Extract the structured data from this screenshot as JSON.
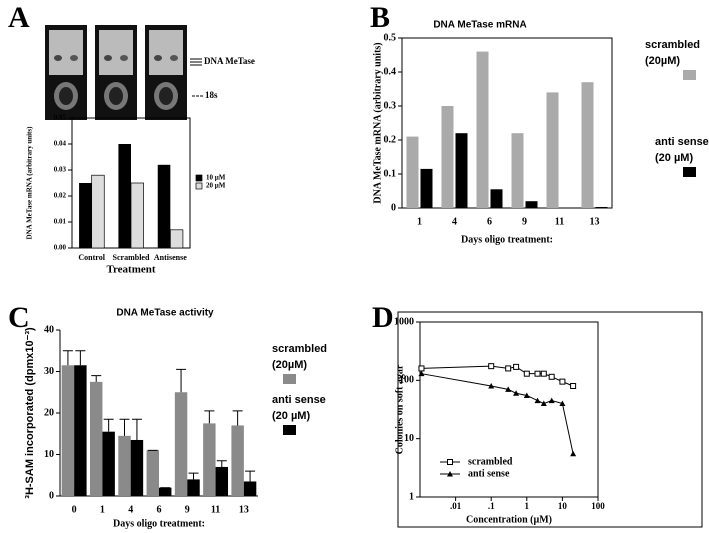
{
  "chart_data": [
    {
      "panel": "A",
      "type": "bar",
      "annotations": [
        "DNA MeTase",
        "18s"
      ],
      "categories": [
        "Control",
        "Scrambled",
        "Antisense"
      ],
      "series": [
        {
          "name": "10 µM",
          "color": "#000000",
          "values": [
            0.025,
            0.04,
            0.032
          ]
        },
        {
          "name": "20 µM",
          "color": "#dddddd",
          "values": [
            0.028,
            0.025,
            0.007
          ]
        }
      ],
      "ylim": [
        0,
        0.05
      ],
      "yticks": [
        {
          "value": 0,
          "label": "0.00"
        },
        {
          "value": 0.01,
          "label": "0.01"
        },
        {
          "value": 0.02,
          "label": "0.02"
        },
        {
          "value": 0.03,
          "label": "0.03"
        },
        {
          "value": 0.04,
          "label": "0.04"
        },
        {
          "value": 0.05,
          "label": "0.05"
        }
      ],
      "ylabel": "DNA MeTase mRNA (arbitrary units)",
      "xlabel": "Treatment"
    },
    {
      "panel": "B",
      "type": "bar",
      "title": "DNA MeTase mRNA",
      "categories": [
        "1",
        "4",
        "6",
        "9",
        "11",
        "13"
      ],
      "series": [
        {
          "name": "scrambled",
          "condition": "(20µM)",
          "color": "#aaaaaa",
          "values": [
            0.21,
            0.3,
            0.46,
            0.22,
            0.34,
            0.37
          ]
        },
        {
          "name": "anti sense",
          "condition": "(20 µM)",
          "color": "#000000",
          "values": [
            0.115,
            0.22,
            0.055,
            0.02,
            0,
            0.003
          ]
        }
      ],
      "ylim": [
        0,
        0.5
      ],
      "yticks": [
        0,
        0.1,
        0.2,
        0.3,
        0.4,
        0.5
      ],
      "ylabel": "DNA MeTase mRNA (arbitrary units)",
      "xlabel": "Days oligo treatment:"
    },
    {
      "panel": "C",
      "type": "bar",
      "title": "DNA MeTase activity",
      "categories": [
        "0",
        "1",
        "4",
        "6",
        "9",
        "11",
        "13"
      ],
      "series": [
        {
          "name": "scrambled",
          "condition": "(20µM)",
          "color": "#8a8a8a",
          "values": [
            31.5,
            27.5,
            14.5,
            11,
            25,
            17.5,
            17
          ],
          "errors": [
            3.5,
            1.5,
            4,
            0,
            5.5,
            3,
            3.5
          ]
        },
        {
          "name": "anti sense",
          "condition": "(20 µM)",
          "color": "#000000",
          "values": [
            31.5,
            15.5,
            13.5,
            2,
            4,
            7,
            3.5
          ],
          "errors": [
            3.5,
            3,
            5,
            0,
            1.5,
            1.5,
            2.5
          ]
        }
      ],
      "ylim": [
        0,
        40
      ],
      "yticks": [
        0,
        10,
        20,
        30,
        40
      ],
      "ylabel": "³H-SAM incorporated (dpmx10⁻³)",
      "xlabel": "Days oligo treatment:"
    },
    {
      "panel": "D",
      "type": "line",
      "xlog": true,
      "ylog": true,
      "x": [
        0.0011,
        0.1,
        0.3,
        0.5,
        1,
        2,
        3,
        5,
        10,
        20
      ],
      "series": [
        {
          "name": "scrambled",
          "color": "#000000",
          "marker": "square",
          "values": [
            160,
            175,
            160,
            170,
            130,
            130,
            130,
            115,
            95,
            80
          ]
        },
        {
          "name": "anti sense",
          "color": "#000000",
          "marker": "triangle",
          "values": [
            130,
            80,
            70,
            60,
            55,
            45,
            40,
            45,
            40,
            5.5
          ]
        }
      ],
      "xlim": [
        0.001,
        100
      ],
      "ylim": [
        1,
        1000
      ],
      "xticks": [
        {
          "value": 0.01,
          "label": ".01"
        },
        {
          "value": 0.1,
          "label": ".1"
        },
        1,
        10,
        100
      ],
      "yticks": [
        1,
        10,
        100,
        1000
      ],
      "ylabel": "Colonies on soft agar",
      "xlabel": "Concentration (µM)"
    }
  ]
}
